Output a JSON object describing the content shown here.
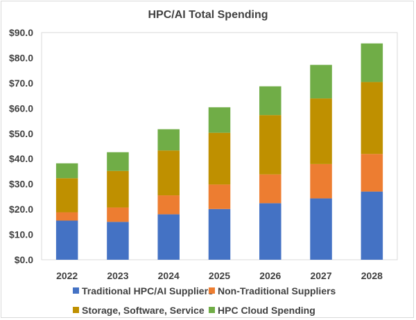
{
  "chart_data": {
    "type": "bar",
    "stacked": true,
    "title": "HPC/AI Total Spending",
    "categories": [
      "2022",
      "2023",
      "2024",
      "2025",
      "2026",
      "2027",
      "2028"
    ],
    "series": [
      {
        "name": "Traditional HPC/AI Suppliers",
        "color": "#4472C4",
        "values": [
          15.5,
          15.0,
          18.0,
          20.1,
          22.4,
          24.3,
          27.0
        ]
      },
      {
        "name": "Non-Traditional Suppliers",
        "color": "#ED7D31",
        "values": [
          3.3,
          5.7,
          7.5,
          9.7,
          11.4,
          13.6,
          14.9
        ]
      },
      {
        "name": "Storage, Software, Service",
        "color": "#BF9000",
        "values": [
          13.5,
          14.5,
          17.8,
          20.5,
          23.5,
          26.0,
          28.5
        ]
      },
      {
        "name": "HPC Cloud Spending",
        "color": "#70AD47",
        "values": [
          5.9,
          7.4,
          8.4,
          10.1,
          11.4,
          13.3,
          15.3
        ]
      }
    ],
    "ylim": [
      0,
      90
    ],
    "yticks": [
      "$0.0",
      "$10.0",
      "$20.0",
      "$30.0",
      "$40.0",
      "$50.0",
      "$60.0",
      "$70.0",
      "$80.0",
      "$90.0"
    ],
    "ytick_values": [
      0,
      10,
      20,
      30,
      40,
      50,
      60,
      70,
      80,
      90
    ],
    "grid": false,
    "legend_position": "bottom"
  }
}
